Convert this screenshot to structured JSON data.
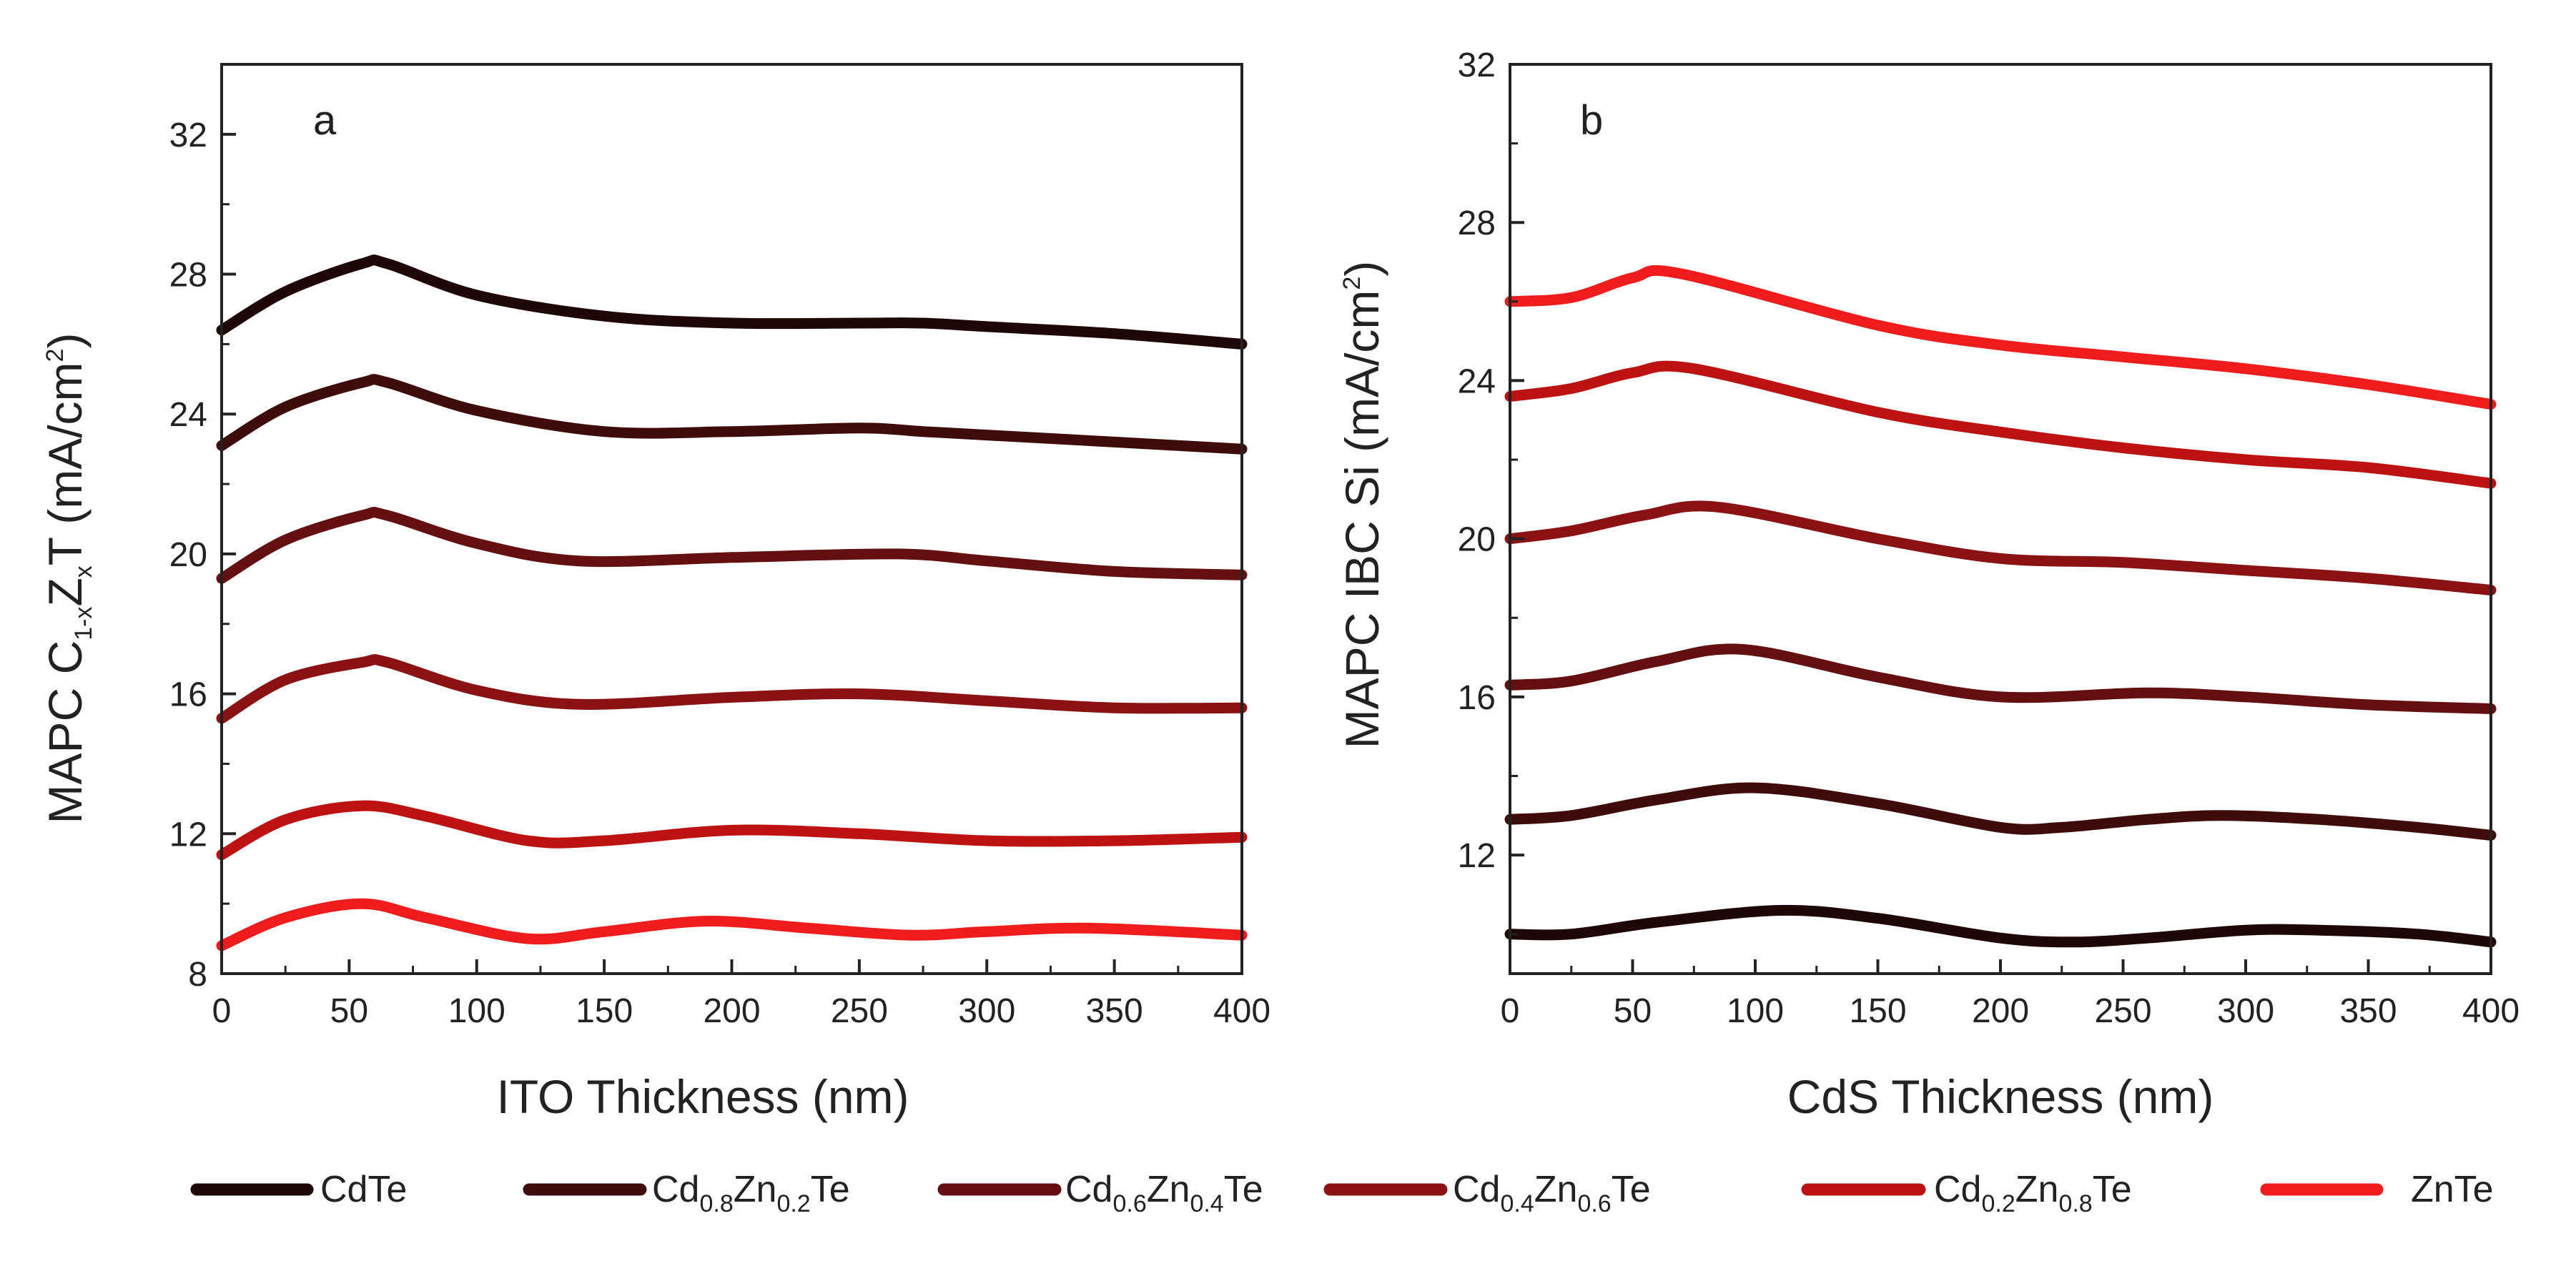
{
  "chart_data": [
    {
      "type": "line",
      "panel": "a",
      "xlabel": "ITO Thickness (nm)",
      "ylabel": "MAPC C1-xZxT (mA/cm2)",
      "ylabel_parts": {
        "main1": "MAPC C",
        "sub1": "1-x",
        "main2": "Z",
        "sub2": "x",
        "main3": "T (mA/cm",
        "sup": "2",
        "main4": ")"
      },
      "xlim": [
        0,
        400
      ],
      "ylim": [
        8,
        34
      ],
      "xticks": [
        0,
        50,
        100,
        150,
        200,
        250,
        300,
        350,
        400
      ],
      "yticks": [
        8,
        12,
        16,
        20,
        24,
        28,
        32
      ],
      "series": [
        {
          "name": "CdTe",
          "x": [
            0,
            25,
            55,
            65,
            100,
            150,
            200,
            250,
            275,
            300,
            350,
            400
          ],
          "y": [
            26.4,
            27.5,
            28.3,
            28.3,
            27.4,
            26.8,
            26.6,
            26.6,
            26.6,
            26.5,
            26.3,
            26.0
          ]
        },
        {
          "name": "Cd0.8Zn0.2Te",
          "x": [
            0,
            25,
            55,
            65,
            100,
            150,
            200,
            250,
            275,
            300,
            350,
            400
          ],
          "y": [
            23.1,
            24.2,
            24.9,
            24.9,
            24.1,
            23.5,
            23.5,
            23.6,
            23.5,
            23.4,
            23.2,
            23.0
          ]
        },
        {
          "name": "Cd0.6Zn0.4Te",
          "x": [
            0,
            25,
            55,
            65,
            100,
            140,
            200,
            265,
            300,
            350,
            400
          ],
          "y": [
            19.3,
            20.4,
            21.1,
            21.1,
            20.3,
            19.8,
            19.9,
            20.0,
            19.8,
            19.5,
            19.4
          ]
        },
        {
          "name": "Cd0.4Zn0.6Te",
          "x": [
            0,
            25,
            55,
            65,
            100,
            140,
            200,
            250,
            300,
            350,
            400
          ],
          "y": [
            15.3,
            16.4,
            16.9,
            16.9,
            16.1,
            15.7,
            15.9,
            16.0,
            15.8,
            15.6,
            15.6
          ]
        },
        {
          "name": "Cd0.2Zn0.8Te",
          "x": [
            0,
            25,
            55,
            80,
            120,
            150,
            200,
            250,
            300,
            350,
            400
          ],
          "y": [
            11.4,
            12.4,
            12.8,
            12.5,
            11.8,
            11.8,
            12.1,
            12.0,
            11.8,
            11.8,
            11.9
          ]
        },
        {
          "name": "ZnTe",
          "x": [
            0,
            25,
            55,
            80,
            120,
            150,
            190,
            230,
            270,
            300,
            340,
            400
          ],
          "y": [
            8.8,
            9.6,
            10.0,
            9.6,
            9.0,
            9.2,
            9.5,
            9.3,
            9.1,
            9.2,
            9.3,
            9.1
          ]
        }
      ]
    },
    {
      "type": "line",
      "panel": "b",
      "xlabel": "CdS Thickness (nm)",
      "ylabel": "MAPC IBC Si (mA/cm2)",
      "ylabel_parts": {
        "main1": "MAPC IBC Si (mA/cm",
        "sup": "2",
        "main2": ")"
      },
      "xlim": [
        0,
        400
      ],
      "ylim": [
        9,
        32
      ],
      "xticks": [
        0,
        50,
        100,
        150,
        200,
        250,
        300,
        350,
        400
      ],
      "yticks": [
        12,
        16,
        20,
        24,
        28,
        32
      ],
      "series": [
        {
          "name": "CdTe",
          "x": [
            0,
            25,
            60,
            110,
            150,
            200,
            230,
            260,
            300,
            330,
            370,
            400
          ],
          "y": [
            10.0,
            10.0,
            10.3,
            10.6,
            10.4,
            9.9,
            9.8,
            9.9,
            10.1,
            10.1,
            10.0,
            9.8
          ]
        },
        {
          "name": "Cd0.8Zn0.2Te",
          "x": [
            0,
            25,
            60,
            100,
            150,
            200,
            225,
            260,
            290,
            330,
            370,
            400
          ],
          "y": [
            12.9,
            13.0,
            13.4,
            13.7,
            13.3,
            12.7,
            12.7,
            12.9,
            13.0,
            12.9,
            12.7,
            12.5
          ]
        },
        {
          "name": "Cd0.6Zn0.4Te",
          "x": [
            0,
            25,
            60,
            95,
            150,
            200,
            260,
            300,
            350,
            400
          ],
          "y": [
            16.3,
            16.4,
            16.9,
            17.2,
            16.5,
            16.0,
            16.1,
            16.0,
            15.8,
            15.7
          ]
        },
        {
          "name": "Cd0.4Zn0.6Te",
          "x": [
            0,
            25,
            55,
            85,
            150,
            200,
            250,
            300,
            350,
            400
          ],
          "y": [
            20.0,
            20.2,
            20.6,
            20.8,
            20.0,
            19.5,
            19.4,
            19.2,
            19.0,
            18.7
          ]
        },
        {
          "name": "Cd0.2Zn0.8Te",
          "x": [
            0,
            25,
            50,
            75,
            150,
            200,
            250,
            300,
            350,
            400
          ],
          "y": [
            23.6,
            23.8,
            24.2,
            24.3,
            23.2,
            22.7,
            22.3,
            22.0,
            21.8,
            21.4
          ]
        },
        {
          "name": "ZnTe",
          "x": [
            0,
            25,
            50,
            70,
            150,
            200,
            250,
            300,
            350,
            400
          ],
          "y": [
            26.0,
            26.1,
            26.6,
            26.7,
            25.4,
            24.9,
            24.6,
            24.3,
            23.9,
            23.4
          ]
        }
      ]
    }
  ],
  "legend": {
    "placement": "bottom",
    "entries": [
      {
        "name": "CdTe",
        "main": "CdTe",
        "color": "#200707"
      },
      {
        "name": "Cd0.8Zn0.2Te",
        "parts": [
          "Cd",
          "0.8",
          "Zn",
          "0.2",
          "Te"
        ],
        "color": "#3f0c0c"
      },
      {
        "name": "Cd0.6Zn0.4Te",
        "parts": [
          "Cd",
          "0.6",
          "Zn",
          "0.4",
          "Te"
        ],
        "color": "#651010"
      },
      {
        "name": "Cd0.4Zn0.6Te",
        "parts": [
          "Cd",
          "0.4",
          "Zn",
          "0.6",
          "Te"
        ],
        "color": "#8b1212"
      },
      {
        "name": "Cd0.2Zn0.8Te",
        "parts": [
          "Cd",
          "0.2",
          "Zn",
          "0.8",
          "Te"
        ],
        "color": "#bd1212"
      },
      {
        "name": "ZnTe",
        "main": "ZnTe",
        "color": "#ee1c1c"
      }
    ]
  }
}
